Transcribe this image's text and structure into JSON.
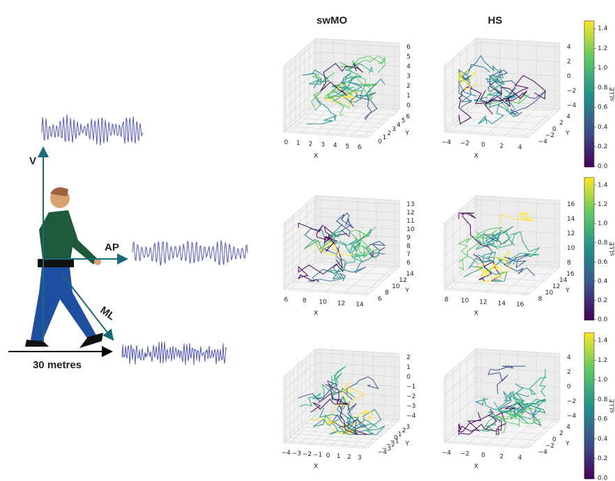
{
  "left_panel": {
    "axes": {
      "v": "V",
      "ap": "AP",
      "ml": "ML"
    },
    "distance": "30 metres"
  },
  "columns": [
    "swMO",
    "HS"
  ],
  "plots": [
    {
      "x_ticks": [
        "0",
        "1",
        "2",
        "3",
        "4",
        "5",
        "6"
      ],
      "y_ticks": [
        "0",
        "1",
        "2",
        "3",
        "4",
        "5",
        "6"
      ],
      "z_ticks": [
        "0",
        "1",
        "2",
        "3",
        "4",
        "5",
        "6"
      ],
      "x_label": "X",
      "y_label": "Y"
    },
    {
      "x_ticks": [
        "−4",
        "−2",
        "0",
        "2",
        "4"
      ],
      "y_ticks": [
        "−4",
        "−2",
        "0",
        "2",
        "4"
      ],
      "z_ticks": [
        "−4",
        "−2",
        "0",
        "2",
        "4"
      ],
      "x_label": "X",
      "y_label": "Y"
    },
    {
      "x_ticks": [
        "6",
        "8",
        "10",
        "12",
        "14"
      ],
      "y_ticks": [
        "6",
        "8",
        "10",
        "12",
        "14"
      ],
      "z_ticks": [
        "6",
        "7",
        "8",
        "9",
        "10",
        "11",
        "12",
        "13"
      ],
      "x_label": "X",
      "y_label": "Y"
    },
    {
      "x_ticks": [
        "8",
        "10",
        "12",
        "14",
        "16"
      ],
      "y_ticks": [
        "8",
        "10",
        "12",
        "14",
        "16"
      ],
      "z_ticks": [
        "8",
        "10",
        "12",
        "14",
        "16"
      ],
      "x_label": "X",
      "y_label": "Y"
    },
    {
      "x_ticks": [
        "−4",
        "−3",
        "−2",
        "−1",
        "0",
        "1",
        "2",
        "3"
      ],
      "y_ticks": [
        "−4",
        "−3",
        "−2",
        "−1",
        "0",
        "1",
        "2",
        "3"
      ],
      "z_ticks": [
        "−4",
        "−3",
        "−2",
        "−1",
        "0",
        "1",
        "2"
      ],
      "x_label": "X",
      "y_label": "Y"
    },
    {
      "x_ticks": [
        "−4",
        "−2",
        "0",
        "2",
        "4"
      ],
      "y_ticks": [
        "−4",
        "−2",
        "0",
        "2",
        "4"
      ],
      "z_ticks": [
        "−4",
        "−2",
        "0",
        "2",
        "4"
      ],
      "x_label": "X",
      "y_label": "Y"
    }
  ],
  "colorbars": [
    {
      "label": "sLLE",
      "ticks": [
        "0.0",
        "0.2",
        "0.4",
        "0.6",
        "0.8",
        "1.0",
        "1.2",
        "1.4"
      ]
    },
    {
      "label": "sLLE",
      "ticks": [
        "0.0",
        "0.2",
        "0.4",
        "0.6",
        "0.8",
        "1.0",
        "1.2",
        "1.4"
      ]
    },
    {
      "label": "sLLE",
      "ticks": [
        "0.0",
        "0.2",
        "0.4",
        "0.6",
        "0.8",
        "1.0",
        "1.2",
        "1.4"
      ]
    }
  ]
}
